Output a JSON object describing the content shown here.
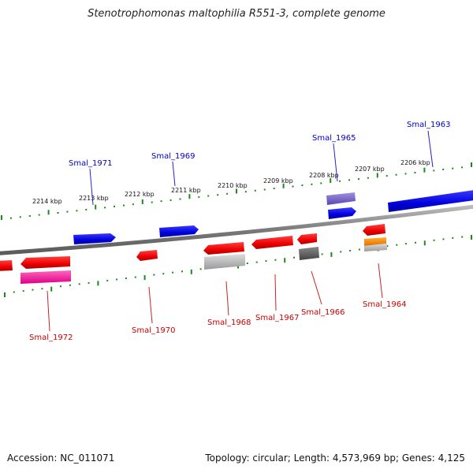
{
  "title": "Stenotrophomonas maltophilia R551-3, complete genome",
  "footer": {
    "accession": "Accession: NC_011071",
    "topology": "Topology: circular; Length: 4,573,969 bp; Genes: 4,125"
  },
  "colors": {
    "backbone": "#8a8a8a",
    "tick": "#1a8a1a",
    "forward_label": "#0000cc",
    "reverse_label": "#cc0000"
  },
  "scale_labels": [
    "2214 kbp",
    "2213 kbp",
    "2212 kbp",
    "2211 kbp",
    "2210 kbp",
    "2209 kbp",
    "2208 kbp",
    "2207 kbp",
    "2206 kbp"
  ],
  "gene_labels_forward": [
    "Smal_1971",
    "Smal_1969",
    "Smal_1965",
    "Smal_1963"
  ],
  "gene_labels_reverse": [
    "Smal_1972",
    "Smal_1970",
    "Smal_1968",
    "Smal_1967",
    "Smal_1966",
    "Smal_1964"
  ]
}
